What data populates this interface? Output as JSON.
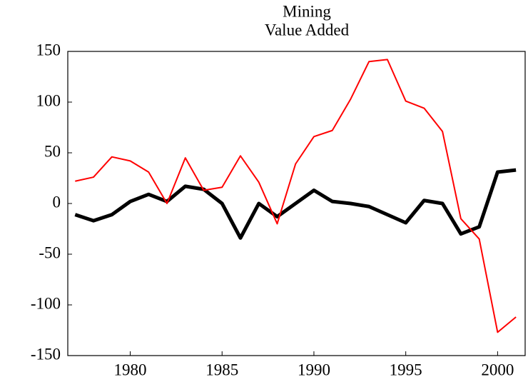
{
  "chart_data": {
    "type": "line",
    "title": "Mining",
    "subtitle": "Value Added",
    "x": [
      1977,
      1978,
      1979,
      1980,
      1981,
      1982,
      1983,
      1984,
      1985,
      1986,
      1987,
      1988,
      1989,
      1990,
      1991,
      1992,
      1993,
      1994,
      1995,
      1996,
      1997,
      1998,
      1999,
      2000,
      2001
    ],
    "series": [
      {
        "color": "#000000",
        "values": [
          -11,
          -17,
          -11,
          2,
          9,
          2,
          17,
          14,
          0,
          -34,
          0,
          -13,
          0,
          13,
          2,
          0,
          -3,
          -11,
          -19,
          3,
          0,
          -30,
          -23,
          31,
          33
        ]
      },
      {
        "color": "#ff0000",
        "values": [
          22,
          26,
          46,
          42,
          31,
          0,
          45,
          13,
          16,
          47,
          21,
          -20,
          39,
          66,
          72,
          103,
          140,
          142,
          101,
          94,
          71,
          -15,
          -35,
          -127,
          -112
        ]
      }
    ],
    "xlim": [
      1976.6,
      2001.5
    ],
    "xticks": [
      1980,
      1985,
      1990,
      1995,
      2000
    ],
    "ylim": [
      -150,
      150
    ],
    "yticks": [
      -150,
      -100,
      -50,
      0,
      50,
      100,
      150
    ]
  }
}
